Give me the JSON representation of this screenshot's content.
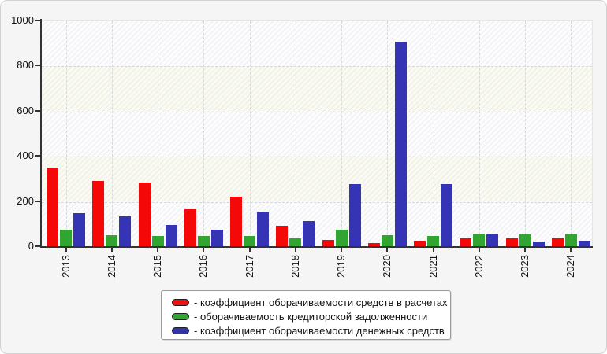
{
  "window": {
    "background_color": "#f5f5f5",
    "border_color": "#d2d2d2"
  },
  "chart_data": {
    "type": "bar",
    "title": "",
    "categories": [
      "2013",
      "2014",
      "2015",
      "2016",
      "2017",
      "2018",
      "2019",
      "2020",
      "2021",
      "2022",
      "2023",
      "2024"
    ],
    "series": [
      {
        "name": "коэффициент оборачиваемости средств в расчетах",
        "color": "#f40808",
        "values": [
          349,
          289,
          282,
          165,
          219,
          91,
          27,
          13,
          23,
          36,
          36,
          35
        ]
      },
      {
        "name": "оборачиваемость кредиторской задолженности",
        "color": "#32a432",
        "values": [
          72,
          49,
          47,
          47,
          47,
          34,
          73,
          49,
          45,
          57,
          52,
          52
        ]
      },
      {
        "name": "коэффициент оборачиваемости денежных средств",
        "color": "#3434b4",
        "values": [
          146,
          132,
          95,
          72,
          149,
          110,
          275,
          906,
          275,
          52,
          20,
          23
        ]
      }
    ],
    "ylim": [
      0,
      1000
    ],
    "yticks": [
      0,
      200,
      400,
      600,
      800,
      1000
    ],
    "xlabel": "",
    "ylabel": "",
    "grid": {
      "horizontal": "dashed",
      "vertical": "dashed-at-category-centers",
      "color": "#d8d8d8"
    },
    "xtick_rotation": 90,
    "legend_position": "bottom-center",
    "plot_bands": {
      "alternating": true,
      "colors": [
        "#fcfcfd",
        "#fafaf0"
      ],
      "hatch": "diagonal"
    }
  },
  "legend": {
    "items": [
      {
        "label": "- коэффициент оборачиваемости средств в расчетах",
        "swatch_color": "#ee1111"
      },
      {
        "label": "- оборачиваемость кредиторской задолженности",
        "swatch_color": "#33a433"
      },
      {
        "label": "- коэффициент оборачиваемости денежных средств",
        "swatch_color": "#3333aa"
      }
    ]
  }
}
